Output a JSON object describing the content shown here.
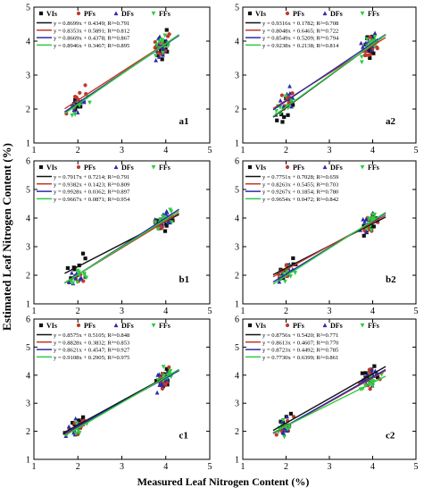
{
  "figure": {
    "ylabel": "Estimated Leaf Nitrogen Content (%)",
    "xlabel": "Measured Leaf Nitrogen Content  (%)"
  },
  "colors": {
    "VIs": "#111111",
    "PFs": "#c0392b",
    "DFs": "#2c2ca8",
    "FFs": "#2ecc40"
  },
  "chart_data": [
    {
      "type": "scatter",
      "panel": "a1",
      "xlim": [
        1,
        5
      ],
      "ylim": [
        1,
        5
      ],
      "xticks": [
        1,
        2,
        3,
        4,
        5
      ],
      "yticks": [
        1,
        2,
        3,
        4,
        5
      ],
      "series": [
        {
          "name": "VIs",
          "marker": "square",
          "fit": {
            "slope": 0.8699,
            "intercept": 0.4349,
            "r2": 0.791
          },
          "equation": "y = 0.8699x + 0.4349;  R²=0.791"
        },
        {
          "name": "PFs",
          "marker": "circle",
          "fit": {
            "slope": 0.8353,
            "intercept": 0.5891,
            "r2": 0.812
          },
          "equation": "y = 0.8353x + 0.5891;  R²=0.812"
        },
        {
          "name": "DFs",
          "marker": "triangle-up",
          "fit": {
            "slope": 0.8669,
            "intercept": 0.4378,
            "r2": 0.867
          },
          "equation": "y = 0.8669x + 0.4378;  R²=0.867"
        },
        {
          "name": "FFs",
          "marker": "triangle-down",
          "fit": {
            "slope": 0.8946,
            "intercept": 0.3467,
            "r2": 0.895
          },
          "equation": "y = 0.8946x + 0.3467;  R²=0.895"
        }
      ]
    },
    {
      "type": "scatter",
      "panel": "a2",
      "xlim": [
        1,
        5
      ],
      "ylim": [
        1,
        5
      ],
      "xticks": [
        1,
        2,
        3,
        4,
        5
      ],
      "yticks": [
        1,
        2,
        3,
        4,
        5
      ],
      "series": [
        {
          "name": "VIs",
          "marker": "square",
          "fit": {
            "slope": 0.9316,
            "intercept": 0.1782,
            "r2": 0.708
          },
          "equation": "y = 0.9316x + 0.1782;  R²=0.708"
        },
        {
          "name": "PFs",
          "marker": "circle",
          "fit": {
            "slope": 0.8048,
            "intercept": 0.6465,
            "r2": 0.722
          },
          "equation": "y = 0.8048x + 0.6465;  R²=0.722"
        },
        {
          "name": "DFs",
          "marker": "triangle-up",
          "fit": {
            "slope": 0.8549,
            "intercept": 0.5209,
            "r2": 0.794
          },
          "equation": "y = 0.8549x + 0.5209;  R²=0.794"
        },
        {
          "name": "FFs",
          "marker": "triangle-down",
          "fit": {
            "slope": 0.9238,
            "intercept": 0.2138,
            "r2": 0.814
          },
          "equation": "y = 0.9238x + 0.2138;  R²=0.814"
        }
      ]
    },
    {
      "type": "scatter",
      "panel": "b1",
      "xlim": [
        1,
        5
      ],
      "ylim": [
        1,
        6
      ],
      "xticks": [
        1,
        2,
        3,
        4,
        5
      ],
      "yticks": [
        1,
        2,
        3,
        4,
        5,
        6
      ],
      "series": [
        {
          "name": "VIs",
          "marker": "square",
          "fit": {
            "slope": 0.7917,
            "intercept": 0.7214,
            "r2": 0.791
          },
          "equation": "y = 0.7917x + 0.7214;  R²=0.791"
        },
        {
          "name": "PFs",
          "marker": "circle",
          "fit": {
            "slope": 0.9382,
            "intercept": 0.1423,
            "r2": 0.809
          },
          "equation": "y = 0.9382x + 0.1423;  R²=0.809"
        },
        {
          "name": "DFs",
          "marker": "triangle-up",
          "fit": {
            "slope": 0.9928,
            "intercept": 0.0362,
            "r2": 0.897
          },
          "equation": "y = 0.9928x + 0.0362;  R²=0.897"
        },
        {
          "name": "FFs",
          "marker": "triangle-down",
          "fit": {
            "slope": 0.9667,
            "intercept": 0.0871,
            "r2": 0.954
          },
          "equation": "y = 0.9667x + 0.0871;  R²=0.954"
        }
      ]
    },
    {
      "type": "scatter",
      "panel": "b2",
      "xlim": [
        1,
        5
      ],
      "ylim": [
        1,
        6
      ],
      "xticks": [
        1,
        2,
        3,
        4,
        5
      ],
      "yticks": [
        1,
        2,
        3,
        4,
        5,
        6
      ],
      "series": [
        {
          "name": "VIs",
          "marker": "square",
          "fit": {
            "slope": 0.7751,
            "intercept": 0.7028,
            "r2": 0.659
          },
          "equation": "y = 0.7751x + 0.7028;  R²=0.659"
        },
        {
          "name": "PFs",
          "marker": "circle",
          "fit": {
            "slope": 0.8263,
            "intercept": 0.5455,
            "r2": 0.703
          },
          "equation": "y = 0.8263x + 0.5455;  R²=0.703"
        },
        {
          "name": "DFs",
          "marker": "triangle-up",
          "fit": {
            "slope": 0.9267,
            "intercept": 0.1854,
            "r2": 0.78
          },
          "equation": "y = 0.9267x + 0.1854;  R²=0.780"
        },
        {
          "name": "FFs",
          "marker": "triangle-down",
          "fit": {
            "slope": 0.9654,
            "intercept": 0.0472,
            "r2": 0.842
          },
          "equation": "y = 0.9654x + 0.0472;  R²=0.842"
        }
      ]
    },
    {
      "type": "scatter",
      "panel": "c1",
      "xlim": [
        1,
        5
      ],
      "ylim": [
        1,
        6
      ],
      "xticks": [
        1,
        2,
        3,
        4,
        5
      ],
      "yticks": [
        1,
        2,
        3,
        4,
        5,
        6
      ],
      "series": [
        {
          "name": "VIs",
          "marker": "square",
          "fit": {
            "slope": 0.8575,
            "intercept": 0.5105,
            "r2": 0.848
          },
          "equation": "y = 0.8575x + 0.5105;  R²=0.848"
        },
        {
          "name": "PFs",
          "marker": "circle",
          "fit": {
            "slope": 0.8828,
            "intercept": 0.3832,
            "r2": 0.853
          },
          "equation": "y = 0.8828x + 0.3832;  R²=0.853"
        },
        {
          "name": "DFs",
          "marker": "triangle-up",
          "fit": {
            "slope": 0.8621,
            "intercept": 0.4547,
            "r2": 0.927
          },
          "equation": "y = 0.8621x + 0.4547;  R²=0.927"
        },
        {
          "name": "FFs",
          "marker": "triangle-down",
          "fit": {
            "slope": 0.9108,
            "intercept": 0.2905,
            "r2": 0.975
          },
          "equation": "y = 0.9108x + 0.2905;  R²=0.975"
        }
      ]
    },
    {
      "type": "scatter",
      "panel": "c2",
      "xlim": [
        1,
        5
      ],
      "ylim": [
        1,
        6
      ],
      "xticks": [
        1,
        2,
        3,
        4,
        5
      ],
      "yticks": [
        1,
        2,
        3,
        4,
        5,
        6
      ],
      "series": [
        {
          "name": "VIs",
          "marker": "square",
          "fit": {
            "slope": 0.8756,
            "intercept": 0.542,
            "r2": 0.771
          },
          "equation": "y = 0.8756x + 0.5420;  R²=0.771"
        },
        {
          "name": "PFs",
          "marker": "circle",
          "fit": {
            "slope": 0.8613,
            "intercept": 0.4607,
            "r2": 0.77
          },
          "equation": "y = 0.8613x + 0.4607;  R²=0.770"
        },
        {
          "name": "DFs",
          "marker": "triangle-up",
          "fit": {
            "slope": 0.8723,
            "intercept": 0.4492,
            "r2": 0.785
          },
          "equation": "y = 0.8723x + 0.4492;  R²=0.785"
        },
        {
          "name": "FFs",
          "marker": "triangle-down",
          "fit": {
            "slope": 0.773,
            "intercept": 0.6399,
            "r2": 0.861
          },
          "equation": "y = 0.7730x + 0.6399;  R²=0.861"
        }
      ]
    }
  ]
}
